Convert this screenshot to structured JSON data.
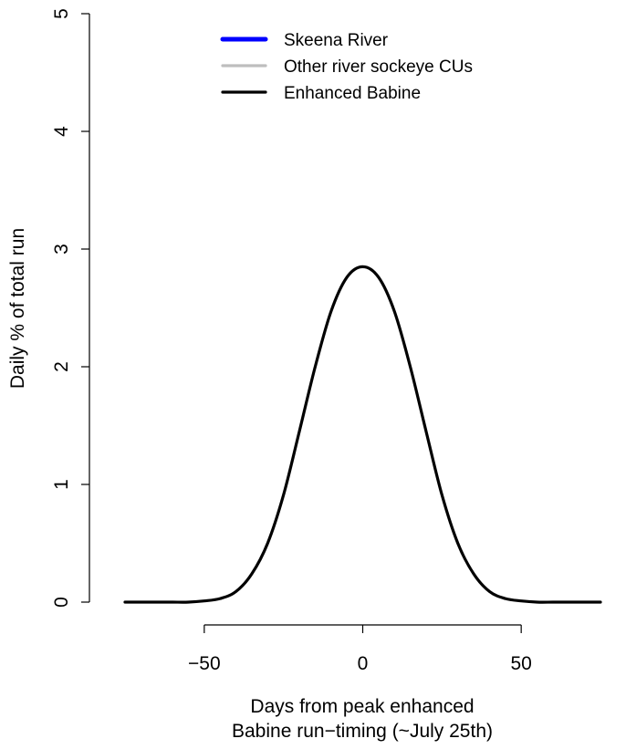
{
  "chart_data": {
    "type": "line",
    "title": "",
    "xlabel_lines": [
      "Days from peak enhanced",
      "Babine run−timing (~July 25th)"
    ],
    "ylabel": "Daily % of total run",
    "xlim": [
      -75,
      75
    ],
    "ylim": [
      0,
      5
    ],
    "x_ticks": [
      -50,
      0,
      50
    ],
    "x_tick_labels": [
      "−50",
      "0",
      "50"
    ],
    "y_ticks": [
      0,
      1,
      2,
      3,
      4,
      5
    ],
    "y_tick_labels": [
      "0",
      "1",
      "2",
      "3",
      "4",
      "5"
    ],
    "grid": false,
    "legend_position": "top",
    "legend": [
      {
        "label": "Skeena River",
        "color": "#0000ff"
      },
      {
        "label": "Other river sockeye CUs",
        "color": "#bebebe"
      },
      {
        "label": "Enhanced Babine",
        "color": "#000000"
      }
    ],
    "series": [
      {
        "name": "Enhanced Babine",
        "color": "#000000",
        "x": [
          -75,
          -70,
          -65,
          -60,
          -55,
          -50,
          -45,
          -40,
          -35,
          -30,
          -25,
          -20,
          -15,
          -10,
          -5,
          0,
          5,
          10,
          15,
          20,
          25,
          30,
          35,
          40,
          45,
          50,
          55,
          60,
          65,
          70,
          75
        ],
        "y": [
          0.0,
          0.0,
          0.0,
          0.0,
          0.0,
          0.01,
          0.03,
          0.09,
          0.24,
          0.5,
          0.91,
          1.45,
          2.0,
          2.47,
          2.76,
          2.85,
          2.76,
          2.47,
          2.0,
          1.45,
          0.91,
          0.5,
          0.24,
          0.09,
          0.03,
          0.01,
          0.0,
          0.0,
          0.0,
          0.0,
          0.0
        ]
      }
    ]
  }
}
